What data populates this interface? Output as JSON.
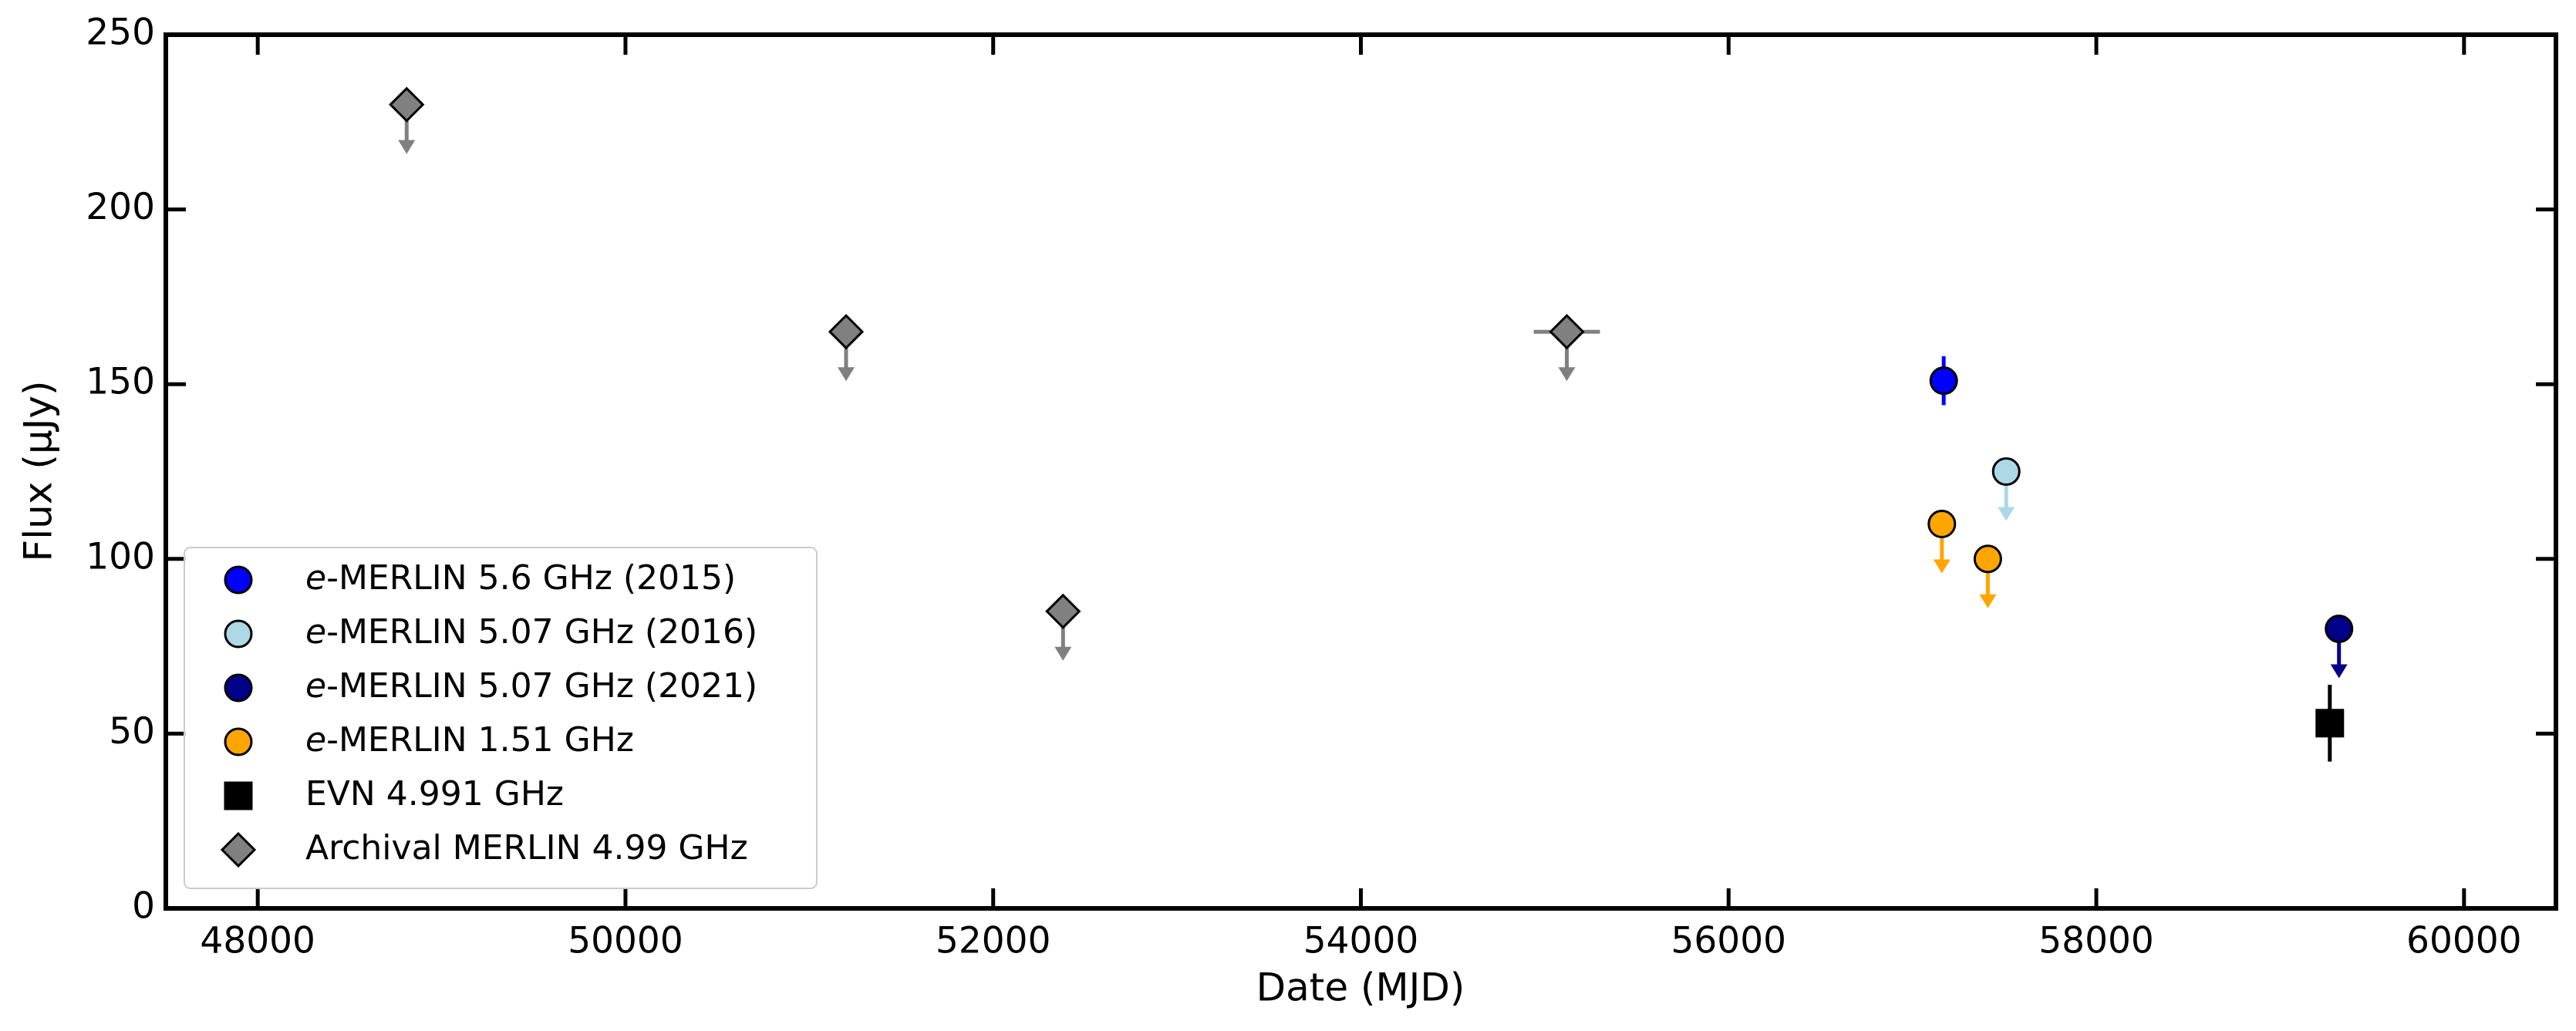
{
  "chart_data": {
    "type": "scatter",
    "xlabel": "Date (MJD)",
    "ylabel": "Flux (μJy)",
    "xlim": [
      47500,
      60500
    ],
    "ylim": [
      0,
      250
    ],
    "xticks": [
      48000,
      50000,
      52000,
      54000,
      56000,
      58000,
      60000
    ],
    "yticks": [
      0,
      50,
      100,
      150,
      200,
      250
    ],
    "legend": "lower left",
    "series": [
      {
        "name": "e-MERLIN 5.6 GHz (2015)",
        "color": "#0000ff",
        "marker": "circle",
        "x": [
          57170
        ],
        "values": [
          151
        ],
        "yerr": [
          7
        ],
        "upper_limit": false
      },
      {
        "name": "e-MERLIN 5.07 GHz (2016)",
        "color": "#add8e6",
        "marker": "circle",
        "x": [
          57510
        ],
        "values": [
          125
        ],
        "upper_limit": true
      },
      {
        "name": "e-MERLIN 5.07 GHz (2021)",
        "color": "#00008b",
        "marker": "circle",
        "x": [
          59320
        ],
        "values": [
          80
        ],
        "upper_limit": true
      },
      {
        "name": "e-MERLIN 1.51 GHz",
        "color": "#ffa500",
        "marker": "circle",
        "x": [
          57160,
          57410
        ],
        "values": [
          110,
          100
        ],
        "upper_limit": true
      },
      {
        "name": "EVN 4.991 GHz",
        "color": "#000000",
        "marker": "square",
        "x": [
          59270
        ],
        "values": [
          53
        ],
        "yerr": [
          11
        ],
        "upper_limit": false
      },
      {
        "name": "Archival MERLIN 4.99 GHz",
        "color": "#808080",
        "marker": "diamond",
        "x": [
          48810,
          51200,
          52380,
          55120
        ],
        "values": [
          230,
          165,
          85,
          165
        ],
        "xerr": [
          null,
          null,
          null,
          180
        ],
        "upper_limit": true
      }
    ]
  }
}
